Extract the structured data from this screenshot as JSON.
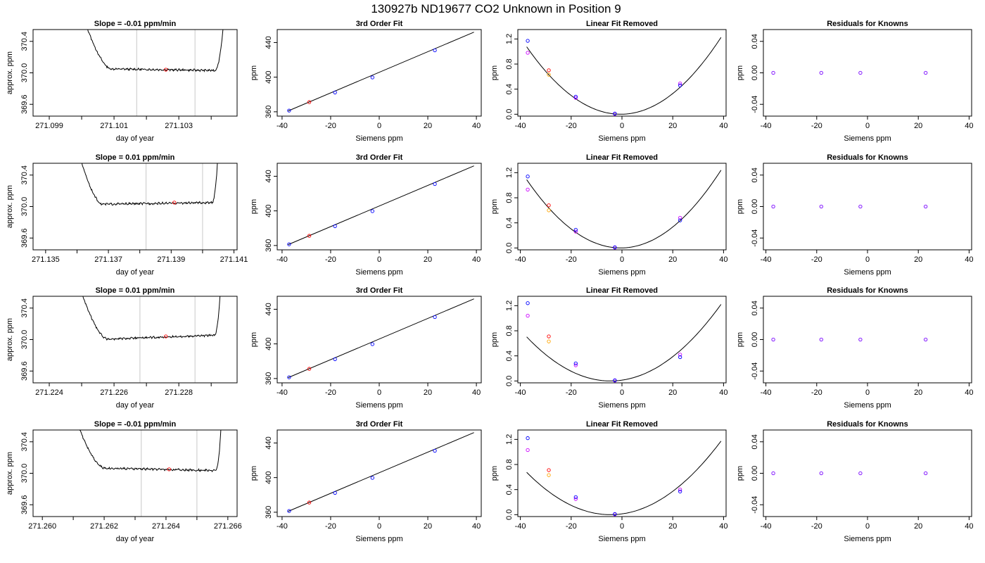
{
  "figure": {
    "title": "130927b      ND19677    CO2 Unknown in Position  9"
  },
  "colors": {
    "line": "#000000",
    "known_point": "#0000ff",
    "unknown_point": "#ff0000",
    "alt_point_orange": "#ffa500",
    "alt_point_magenta": "#cc00ff",
    "residual_point": "#7700ff",
    "marker_line": "#c8c8c8"
  },
  "chart_data": [
    {
      "type": "line",
      "row": 0,
      "kind": "trace",
      "title": "Slope =  -0.01  ppm/min",
      "xlabel": "day of year",
      "ylabel": "approx. ppm",
      "xlim": [
        271.0985,
        271.1048
      ],
      "ylim": [
        369.45,
        370.55
      ],
      "xticks": [
        271.099,
        271.1,
        271.101,
        271.102,
        271.103,
        271.104
      ],
      "xticklabels": [
        "271.099",
        "",
        "271.101",
        "",
        "271.103",
        ""
      ],
      "yticks": [
        369.6,
        370.0,
        370.4
      ],
      "yticklabels": [
        "369.6",
        "370.0",
        "370.4"
      ],
      "trace": {
        "x0": 271.1001,
        "xs": 271.1009,
        "xe": 271.1041,
        "x1": 271.1044,
        "level": 370.04,
        "tilt": -0.02
      },
      "markers": [
        271.1017,
        271.1035
      ],
      "point": {
        "x": 271.1026,
        "y": 370.04
      }
    },
    {
      "type": "scatter",
      "row": 0,
      "kind": "fit",
      "title": "3rd Order Fit",
      "xlabel": "Siemens ppm",
      "ylabel": "ppm",
      "xlim": [
        -42,
        42
      ],
      "ylim": [
        355,
        455
      ],
      "xticks": [
        -40,
        -20,
        0,
        20,
        40
      ],
      "xticklabels": [
        "-40",
        "-20",
        "0",
        "20",
        "40"
      ],
      "yticks": [
        360,
        400,
        440
      ],
      "yticklabels": [
        "360",
        "400",
        "440"
      ],
      "known": [
        [
          -37.1,
          361.4
        ],
        [
          -18.2,
          382.3
        ],
        [
          -2.8,
          399.7
        ],
        [
          22.9,
          431.0
        ]
      ],
      "unknown": [
        [
          -28.8,
          371.2
        ]
      ],
      "curve": {
        "x0": -37.5,
        "x1": 39,
        "y0": 361.0,
        "y1": 452.0
      }
    },
    {
      "type": "scatter",
      "row": 0,
      "kind": "linear_removed",
      "title": "Linear Fit Removed",
      "xlabel": "Siemens ppm",
      "ylabel": "ppm",
      "xlim": [
        -41,
        41
      ],
      "ylim": [
        -0.03,
        1.35
      ],
      "xticks": [
        -40,
        -20,
        0,
        20,
        40
      ],
      "xticklabels": [
        "-40",
        "-20",
        "0",
        "20",
        "40"
      ],
      "yticks": [
        0.0,
        0.4,
        0.8,
        1.2
      ],
      "yticklabels": [
        "0.0",
        "0.4",
        "0.8",
        "1.2"
      ],
      "curve": {
        "a": 0.000785,
        "x0": -0.5,
        "xmin": -37.5,
        "xmax": 39
      },
      "known": [
        [
          -37.1,
          1.17
        ],
        [
          -18.2,
          0.28
        ],
        [
          -2.8,
          0.01
        ],
        [
          22.9,
          0.46
        ]
      ],
      "alt_known": [
        [
          -37.1,
          0.98
        ],
        [
          -18.2,
          0.26
        ],
        [
          -2.8,
          0.005
        ],
        [
          22.9,
          0.49
        ]
      ],
      "unknown": [
        [
          -28.8,
          0.7
        ]
      ],
      "alt_unknown": [
        [
          -28.8,
          0.63
        ]
      ]
    },
    {
      "type": "scatter",
      "row": 0,
      "kind": "residuals",
      "title": "Residuals for Knowns",
      "xlabel": "Siemens ppm",
      "ylabel": "ppm",
      "xlim": [
        -41,
        41
      ],
      "ylim": [
        -0.055,
        0.055
      ],
      "xticks": [
        -40,
        -20,
        0,
        20,
        40
      ],
      "xticklabels": [
        "-40",
        "-20",
        "0",
        "20",
        "40"
      ],
      "yticks": [
        -0.04,
        0.0,
        0.04
      ],
      "yticklabels": [
        "-0.04",
        "0.00",
        "0.04"
      ],
      "points": [
        [
          -37.1,
          0.0
        ],
        [
          -18.2,
          0.0
        ],
        [
          -2.8,
          0.0
        ],
        [
          22.9,
          0.0
        ]
      ]
    },
    {
      "type": "line",
      "row": 1,
      "kind": "trace",
      "title": "Slope =  0.01  ppm/min",
      "xlabel": "day of year",
      "ylabel": "approx. ppm",
      "xlim": [
        271.1346,
        271.1411
      ],
      "ylim": [
        369.45,
        370.55
      ],
      "xticks": [
        271.135,
        271.136,
        271.137,
        271.138,
        271.139,
        271.14,
        271.141
      ],
      "xticklabels": [
        "271.135",
        "",
        "271.137",
        "",
        "271.139",
        "",
        "271.141"
      ],
      "yticks": [
        369.6,
        370.0,
        370.4
      ],
      "yticklabels": [
        "369.6",
        "370.0",
        "370.4"
      ],
      "trace": {
        "x0": 271.1361,
        "xs": 271.1368,
        "xe": 271.1403,
        "x1": 271.1405,
        "level": 370.04,
        "tilt": 0.02
      },
      "markers": [
        271.1382,
        271.14
      ],
      "point": {
        "x": 271.1391,
        "y": 370.05
      }
    },
    {
      "type": "scatter",
      "row": 1,
      "kind": "fit",
      "title": "3rd Order Fit",
      "xlabel": "Siemens ppm",
      "ylabel": "ppm",
      "xlim": [
        -42,
        42
      ],
      "ylim": [
        355,
        455
      ],
      "xticks": [
        -40,
        -20,
        0,
        20,
        40
      ],
      "xticklabels": [
        "-40",
        "-20",
        "0",
        "20",
        "40"
      ],
      "yticks": [
        360,
        400,
        440
      ],
      "yticklabels": [
        "360",
        "400",
        "440"
      ],
      "known": [
        [
          -37.1,
          361.4
        ],
        [
          -18.2,
          382.3
        ],
        [
          -2.8,
          399.7
        ],
        [
          22.9,
          431.0
        ]
      ],
      "unknown": [
        [
          -28.8,
          371.2
        ]
      ],
      "curve": {
        "x0": -37.5,
        "x1": 39,
        "y0": 361.0,
        "y1": 452.0
      }
    },
    {
      "type": "scatter",
      "row": 1,
      "kind": "linear_removed",
      "title": "Linear Fit Removed",
      "xlabel": "Siemens ppm",
      "ylabel": "ppm",
      "xlim": [
        -41,
        41
      ],
      "ylim": [
        -0.03,
        1.35
      ],
      "xticks": [
        -40,
        -20,
        0,
        20,
        40
      ],
      "xticklabels": [
        "-40",
        "-20",
        "0",
        "20",
        "40"
      ],
      "yticks": [
        0.0,
        0.4,
        0.8,
        1.2
      ],
      "yticklabels": [
        "0.0",
        "0.4",
        "0.8",
        "1.2"
      ],
      "curve": {
        "a": 0.000795,
        "x0": -0.5,
        "xmin": -37.5,
        "xmax": 39
      },
      "known": [
        [
          -37.1,
          1.14
        ],
        [
          -18.2,
          0.29
        ],
        [
          -2.8,
          0.01
        ],
        [
          22.9,
          0.44
        ]
      ],
      "alt_known": [
        [
          -37.1,
          0.93
        ],
        [
          -18.2,
          0.26
        ],
        [
          -2.8,
          0.005
        ],
        [
          22.9,
          0.48
        ]
      ],
      "unknown": [
        [
          -28.8,
          0.68
        ]
      ],
      "alt_unknown": [
        [
          -28.8,
          0.6
        ]
      ]
    },
    {
      "type": "scatter",
      "row": 1,
      "kind": "residuals",
      "title": "Residuals for Knowns",
      "xlabel": "Siemens ppm",
      "ylabel": "ppm",
      "xlim": [
        -41,
        41
      ],
      "ylim": [
        -0.055,
        0.055
      ],
      "xticks": [
        -40,
        -20,
        0,
        20,
        40
      ],
      "xticklabels": [
        "-40",
        "-20",
        "0",
        "20",
        "40"
      ],
      "yticks": [
        -0.04,
        0.0,
        0.04
      ],
      "yticklabels": [
        "-0.04",
        "0.00",
        "0.04"
      ],
      "points": [
        [
          -37.1,
          0.0
        ],
        [
          -18.2,
          0.0
        ],
        [
          -2.8,
          0.0
        ],
        [
          22.9,
          0.0
        ]
      ]
    },
    {
      "type": "line",
      "row": 2,
      "kind": "trace",
      "title": "Slope =  0.01  ppm/min",
      "xlabel": "day of year",
      "ylabel": "approx. ppm",
      "xlim": [
        271.2235,
        271.2298
      ],
      "ylim": [
        369.45,
        370.55
      ],
      "xticks": [
        271.224,
        271.225,
        271.226,
        271.227,
        271.228,
        271.229
      ],
      "xticklabels": [
        "271.224",
        "",
        "271.226",
        "",
        "271.228",
        ""
      ],
      "yticks": [
        369.6,
        370.0,
        370.4
      ],
      "yticklabels": [
        "369.6",
        "370.0",
        "370.4"
      ],
      "trace": {
        "x0": 271.225,
        "xs": 271.2258,
        "xe": 271.2291,
        "x1": 271.2293,
        "level": 370.03,
        "tilt": 0.05
      },
      "markers": [
        271.2268,
        271.2285
      ],
      "point": {
        "x": 271.2276,
        "y": 370.04
      }
    },
    {
      "type": "scatter",
      "row": 2,
      "kind": "fit",
      "title": "3rd Order Fit",
      "xlabel": "Siemens ppm",
      "ylabel": "ppm",
      "xlim": [
        -42,
        42
      ],
      "ylim": [
        355,
        455
      ],
      "xticks": [
        -40,
        -20,
        0,
        20,
        40
      ],
      "xticklabels": [
        "-40",
        "-20",
        "0",
        "20",
        "40"
      ],
      "yticks": [
        360,
        400,
        440
      ],
      "yticklabels": [
        "360",
        "400",
        "440"
      ],
      "known": [
        [
          -37.1,
          361.4
        ],
        [
          -18.2,
          382.3
        ],
        [
          -2.8,
          399.7
        ],
        [
          22.9,
          431.0
        ]
      ],
      "unknown": [
        [
          -28.8,
          371.2
        ]
      ],
      "curve": {
        "x0": -37.5,
        "x1": 39,
        "y0": 361.0,
        "y1": 452.0
      }
    },
    {
      "type": "scatter",
      "row": 2,
      "kind": "linear_removed",
      "title": "Linear Fit Removed",
      "xlabel": "Siemens ppm",
      "ylabel": "ppm",
      "xlim": [
        -41,
        41
      ],
      "ylim": [
        -0.03,
        1.35
      ],
      "xticks": [
        -40,
        -20,
        0,
        20,
        40
      ],
      "xticklabels": [
        "-40",
        "-20",
        "0",
        "20",
        "40"
      ],
      "yticks": [
        0.0,
        0.4,
        0.8,
        1.2
      ],
      "yticklabels": [
        "0.0",
        "0.4",
        "0.8",
        "1.2"
      ],
      "curve": {
        "a": 0.000645,
        "x0": -4.5,
        "xmin": -37.5,
        "xmax": 39
      },
      "known": [
        [
          -37.1,
          1.24
        ],
        [
          -18.2,
          0.28
        ],
        [
          -2.8,
          0.01
        ],
        [
          22.9,
          0.38
        ]
      ],
      "alt_known": [
        [
          -37.1,
          1.04
        ],
        [
          -18.2,
          0.25
        ],
        [
          -2.8,
          0.005
        ],
        [
          22.9,
          0.42
        ]
      ],
      "unknown": [
        [
          -28.8,
          0.71
        ]
      ],
      "alt_unknown": [
        [
          -28.8,
          0.63
        ]
      ]
    },
    {
      "type": "scatter",
      "row": 2,
      "kind": "residuals",
      "title": "Residuals for Knowns",
      "xlabel": "Siemens ppm",
      "ylabel": "ppm",
      "xlim": [
        -41,
        41
      ],
      "ylim": [
        -0.055,
        0.055
      ],
      "xticks": [
        -40,
        -20,
        0,
        20,
        40
      ],
      "xticklabels": [
        "-40",
        "-20",
        "0",
        "20",
        "40"
      ],
      "yticks": [
        -0.04,
        0.0,
        0.04
      ],
      "yticklabels": [
        "-0.04",
        "0.00",
        "0.04"
      ],
      "points": [
        [
          -37.1,
          0.0
        ],
        [
          -18.2,
          0.0
        ],
        [
          -2.8,
          0.0
        ],
        [
          22.9,
          0.0
        ]
      ]
    },
    {
      "type": "line",
      "row": 3,
      "kind": "trace",
      "title": "Slope =  -0.01  ppm/min",
      "xlabel": "day of year",
      "ylabel": "approx. ppm",
      "xlim": [
        271.2597,
        271.2663
      ],
      "ylim": [
        369.45,
        370.55
      ],
      "xticks": [
        271.26,
        271.261,
        271.262,
        271.263,
        271.264,
        271.265,
        271.266
      ],
      "xticklabels": [
        "271.260",
        "",
        "271.262",
        "",
        "271.264",
        "",
        "271.266"
      ],
      "yticks": [
        369.6,
        370.0,
        370.4
      ],
      "yticklabels": [
        "369.6",
        "370.0",
        "370.4"
      ],
      "trace": {
        "x0": 271.2611,
        "xs": 271.262,
        "xe": 271.2656,
        "x1": 271.2658,
        "level": 370.05,
        "tilt": -0.03
      },
      "markers": [
        271.2632,
        271.265
      ],
      "point": {
        "x": 271.2641,
        "y": 370.05
      }
    },
    {
      "type": "scatter",
      "row": 3,
      "kind": "fit",
      "title": "3rd Order Fit",
      "xlabel": "Siemens ppm",
      "ylabel": "ppm",
      "xlim": [
        -42,
        42
      ],
      "ylim": [
        355,
        455
      ],
      "xticks": [
        -40,
        -20,
        0,
        20,
        40
      ],
      "xticklabels": [
        "-40",
        "-20",
        "0",
        "20",
        "40"
      ],
      "yticks": [
        360,
        400,
        440
      ],
      "yticklabels": [
        "360",
        "400",
        "440"
      ],
      "known": [
        [
          -37.1,
          361.4
        ],
        [
          -18.2,
          382.3
        ],
        [
          -2.8,
          399.7
        ],
        [
          22.9,
          431.0
        ]
      ],
      "unknown": [
        [
          -28.8,
          371.2
        ]
      ],
      "curve": {
        "x0": -37.5,
        "x1": 39,
        "y0": 361.0,
        "y1": 452.0
      }
    },
    {
      "type": "scatter",
      "row": 3,
      "kind": "linear_removed",
      "title": "Linear Fit Removed",
      "xlabel": "Siemens ppm",
      "ylabel": "ppm",
      "xlim": [
        -41,
        41
      ],
      "ylim": [
        -0.03,
        1.35
      ],
      "xticks": [
        -40,
        -20,
        0,
        20,
        40
      ],
      "xticklabels": [
        "-40",
        "-20",
        "0",
        "20",
        "40"
      ],
      "yticks": [
        0.0,
        0.4,
        0.8,
        1.2
      ],
      "yticklabels": [
        "0.0",
        "0.4",
        "0.8",
        "1.2"
      ],
      "curve": {
        "a": 0.00062,
        "x0": -4.5,
        "xmin": -37.5,
        "xmax": 39
      },
      "known": [
        [
          -37.1,
          1.22
        ],
        [
          -18.2,
          0.28
        ],
        [
          -2.8,
          0.01
        ],
        [
          22.9,
          0.37
        ]
      ],
      "alt_known": [
        [
          -37.1,
          1.03
        ],
        [
          -18.2,
          0.25
        ],
        [
          -2.8,
          0.005
        ],
        [
          22.9,
          0.4
        ]
      ],
      "unknown": [
        [
          -28.8,
          0.71
        ]
      ],
      "alt_unknown": [
        [
          -28.8,
          0.63
        ]
      ]
    },
    {
      "type": "scatter",
      "row": 3,
      "kind": "residuals",
      "title": "Residuals for Knowns",
      "xlabel": "Siemens ppm",
      "ylabel": "ppm",
      "xlim": [
        -41,
        41
      ],
      "ylim": [
        -0.055,
        0.055
      ],
      "xticks": [
        -40,
        -20,
        0,
        20,
        40
      ],
      "xticklabels": [
        "-40",
        "-20",
        "0",
        "20",
        "40"
      ],
      "yticks": [
        -0.04,
        0.0,
        0.04
      ],
      "yticklabels": [
        "-0.04",
        "0.00",
        "0.04"
      ],
      "points": [
        [
          -37.1,
          0.0
        ],
        [
          -18.2,
          0.0
        ],
        [
          -2.8,
          0.0
        ],
        [
          22.9,
          0.0
        ]
      ]
    }
  ]
}
